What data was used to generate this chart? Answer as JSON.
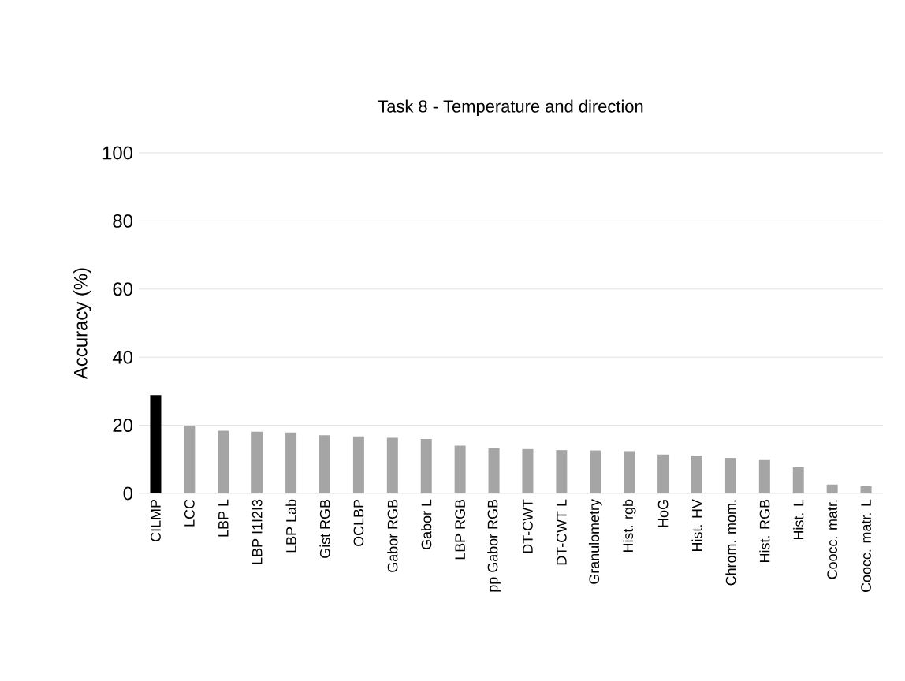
{
  "chart_data": {
    "type": "bar",
    "title": "Task 8  - Temperature and direction",
    "ylabel": "Accuracy (%)",
    "categories": [
      "CILMP",
      "LCC",
      "LBP L",
      "LBP I1I2I3",
      "LBP Lab",
      "Gist RGB",
      "OCLBP",
      "Gabor RGB",
      "Gabor L",
      "LBP RGB",
      "pp Gabor  RGB",
      "DT-CWT",
      "DT-CWT L",
      "Granulometry",
      "Hist. rgb",
      "HoG",
      "Hist. HV",
      "Chrom. mom.",
      "Hist. RGB",
      "Hist. L",
      "Coocc. matr.",
      "Coocc. matr. L"
    ],
    "values": [
      28.9,
      19.9,
      18.4,
      18.1,
      17.9,
      17.1,
      16.7,
      16.3,
      16.0,
      14.0,
      13.3,
      13.0,
      12.7,
      12.6,
      12.4,
      11.4,
      11.1,
      10.4,
      10.0,
      7.7,
      2.6,
      2.1
    ],
    "colors": [
      "#000000",
      "#a5a5a5",
      "#a5a5a5",
      "#a5a5a5",
      "#a5a5a5",
      "#a5a5a5",
      "#a5a5a5",
      "#a5a5a5",
      "#a5a5a5",
      "#a5a5a5",
      "#a5a5a5",
      "#a5a5a5",
      "#a5a5a5",
      "#a5a5a5",
      "#a5a5a5",
      "#a5a5a5",
      "#a5a5a5",
      "#a5a5a5",
      "#a5a5a5",
      "#a5a5a5",
      "#a5a5a5",
      "#a5a5a5"
    ],
    "ylim": [
      0,
      100
    ],
    "yticks": [
      0,
      20,
      40,
      60,
      80,
      100
    ],
    "grid": "y"
  }
}
